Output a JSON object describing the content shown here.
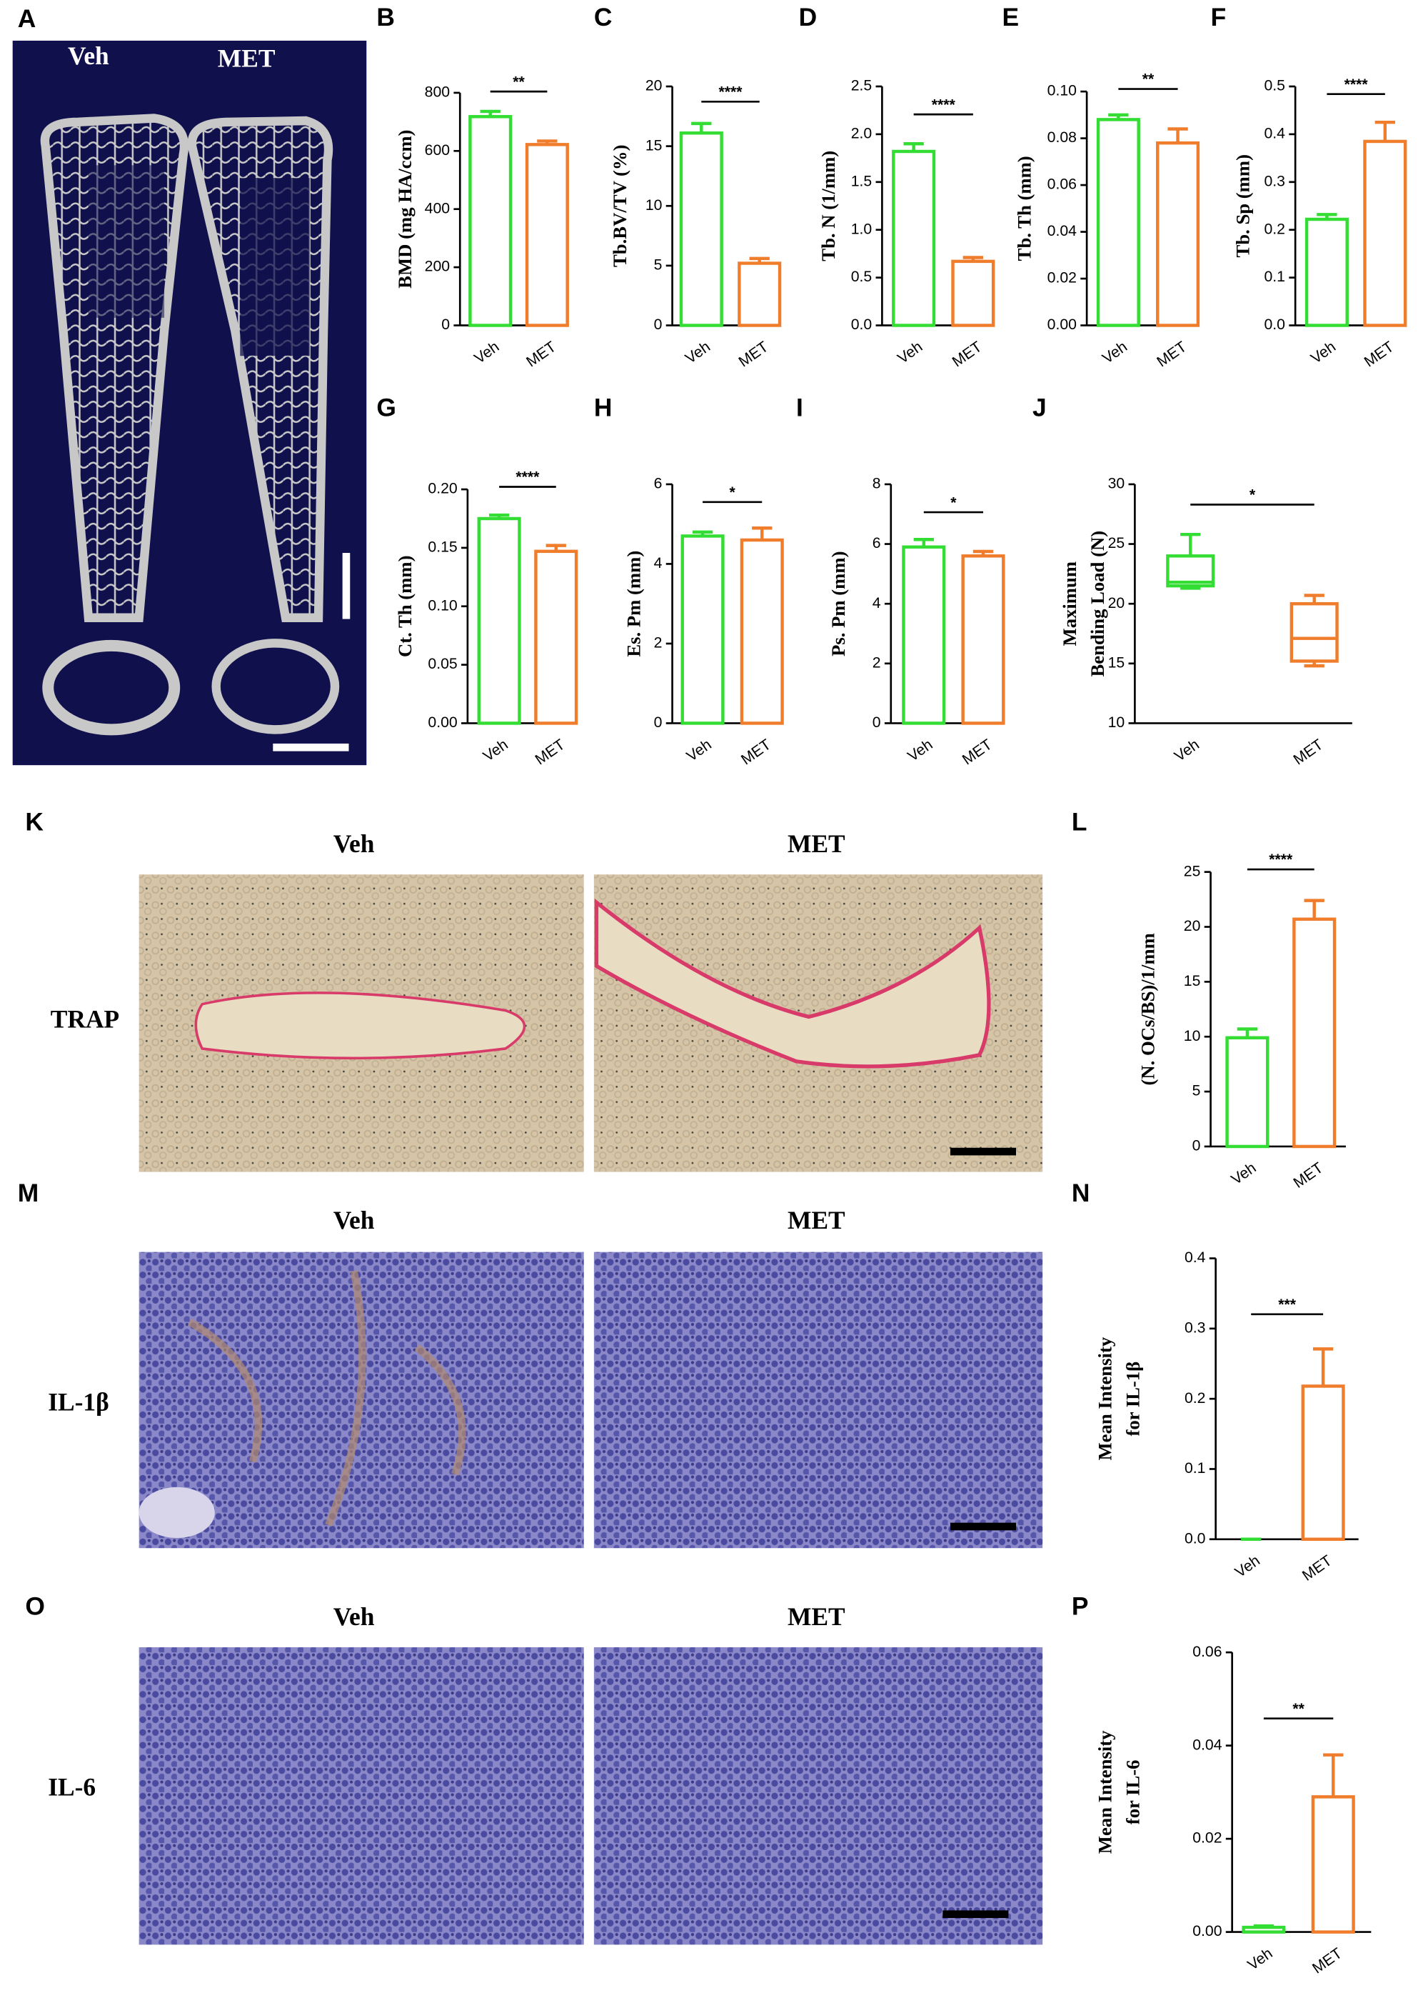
{
  "panels": [
    {
      "label": "A",
      "column_labels": [
        "Veh",
        "MET"
      ]
    },
    {
      "label": "K",
      "column_labels": [
        "Veh",
        "MET"
      ],
      "row_label": "TRAP"
    },
    {
      "label": "M",
      "column_labels": [
        "Veh",
        "MET"
      ],
      "row_label": "IL-1β"
    },
    {
      "label": "O",
      "column_labels": [
        "Veh",
        "MET"
      ],
      "row_label": "IL-6"
    }
  ],
  "chart_data": [
    {
      "type": "bar",
      "panel": "B",
      "ylabel": "BMD (mg HA/ccm)",
      "categories": [
        "Veh",
        "MET"
      ],
      "values": [
        718,
        622
      ],
      "errors": [
        18,
        12
      ],
      "colors": [
        "#33dd33",
        "#ef7d2c"
      ],
      "ylim": [
        0,
        800
      ],
      "yticks": [
        0,
        200,
        400,
        600,
        800
      ],
      "significance": "**"
    },
    {
      "type": "bar",
      "panel": "C",
      "ylabel": "Tb.BV/TV (%)",
      "categories": [
        "Veh",
        "MET"
      ],
      "values": [
        16.1,
        5.2
      ],
      "errors": [
        0.8,
        0.4
      ],
      "colors": [
        "#33dd33",
        "#ef7d2c"
      ],
      "ylim": [
        0,
        20
      ],
      "yticks": [
        0,
        5,
        10,
        15,
        20
      ],
      "significance": "****"
    },
    {
      "type": "bar",
      "panel": "D",
      "ylabel": "Tb. N (1/mm)",
      "categories": [
        "Veh",
        "MET"
      ],
      "values": [
        1.82,
        0.67
      ],
      "errors": [
        0.08,
        0.04
      ],
      "colors": [
        "#33dd33",
        "#ef7d2c"
      ],
      "ylim": [
        0,
        2.5
      ],
      "yticks": [
        {
          "value": 0,
          "label": "0.0"
        },
        0.5,
        {
          "value": 1,
          "label": "1.0"
        },
        1.5,
        {
          "value": 2,
          "label": "2.0"
        },
        2.5
      ],
      "significance": "****"
    },
    {
      "type": "bar",
      "panel": "E",
      "ylabel": "Tb. Th (mm)",
      "categories": [
        "Veh",
        "MET"
      ],
      "values": [
        0.088,
        0.078
      ],
      "errors": [
        0.002,
        0.006
      ],
      "colors": [
        "#33dd33",
        "#ef7d2c"
      ],
      "ylim": [
        0,
        0.1
      ],
      "yticks": [
        {
          "value": 0,
          "label": "0.00"
        },
        {
          "value": 0.02,
          "label": "0.02"
        },
        {
          "value": 0.04,
          "label": "0.04"
        },
        {
          "value": 0.06,
          "label": "0.06"
        },
        {
          "value": 0.08,
          "label": "0.08"
        },
        {
          "value": 0.1,
          "label": "0.10"
        }
      ],
      "significance": "**"
    },
    {
      "type": "bar",
      "panel": "F",
      "ylabel": "Tb. Sp (mm)",
      "categories": [
        "Veh",
        "MET"
      ],
      "values": [
        0.222,
        0.385
      ],
      "errors": [
        0.01,
        0.04
      ],
      "colors": [
        "#33dd33",
        "#ef7d2c"
      ],
      "ylim": [
        0,
        0.5
      ],
      "yticks": [
        {
          "value": 0,
          "label": "0.0"
        },
        0.1,
        0.2,
        0.3,
        0.4,
        0.5
      ],
      "significance": "****"
    },
    {
      "type": "bar",
      "panel": "G",
      "ylabel": "Ct. Th (mm)",
      "categories": [
        "Veh",
        "MET"
      ],
      "values": [
        0.175,
        0.147
      ],
      "errors": [
        0.003,
        0.005
      ],
      "colors": [
        "#33dd33",
        "#ef7d2c"
      ],
      "ylim": [
        0,
        0.2
      ],
      "yticks": [
        {
          "value": 0,
          "label": "0.00"
        },
        0.05,
        {
          "value": 0.1,
          "label": "0.10"
        },
        0.15,
        {
          "value": 0.2,
          "label": "0.20"
        }
      ],
      "significance": "****"
    },
    {
      "type": "bar",
      "panel": "H",
      "ylabel": "Es. Pm (mm)",
      "categories": [
        "Veh",
        "MET"
      ],
      "values": [
        4.7,
        4.6
      ],
      "errors": [
        0.1,
        0.3
      ],
      "colors": [
        "#33dd33",
        "#ef7d2c"
      ],
      "ylim": [
        0,
        6
      ],
      "yticks": [
        0,
        2,
        4,
        6
      ],
      "significance": "*"
    },
    {
      "type": "bar",
      "panel": "I",
      "ylabel": "Ps. Pm (mm)",
      "categories": [
        "Veh",
        "MET"
      ],
      "values": [
        5.9,
        5.6
      ],
      "errors": [
        0.25,
        0.15
      ],
      "colors": [
        "#33dd33",
        "#ef7d2c"
      ],
      "ylim": [
        0,
        8
      ],
      "yticks": [
        0,
        2,
        4,
        6,
        8
      ],
      "significance": "*"
    },
    {
      "type": "box",
      "panel": "J",
      "ylabel": [
        "Maximum",
        "Bending Load (N)"
      ],
      "categories": [
        "Veh",
        "MET"
      ],
      "min": [
        21.3,
        14.8
      ],
      "q1": [
        21.5,
        15.2
      ],
      "median": [
        21.8,
        17.1
      ],
      "q3": [
        24,
        20
      ],
      "max": [
        25.8,
        20.7
      ],
      "colors": [
        "#33dd33",
        "#ef7d2c"
      ],
      "ylim": [
        10,
        30
      ],
      "yticks": [
        10,
        15,
        20,
        25,
        30
      ],
      "significance": "*"
    },
    {
      "type": "bar",
      "panel": "L",
      "ylabel": "(N. OCs/BS)/1/mm",
      "categories": [
        "Veh",
        "MET"
      ],
      "values": [
        9.9,
        20.7
      ],
      "errors": [
        0.8,
        1.7
      ],
      "colors": [
        "#33dd33",
        "#ef7d2c"
      ],
      "ylim": [
        0,
        25
      ],
      "yticks": [
        0,
        5,
        10,
        15,
        20,
        25
      ],
      "significance": "****"
    },
    {
      "type": "bar",
      "panel": "N",
      "ylabel": [
        "Mean Intensity",
        "for IL-1β"
      ],
      "categories": [
        "Veh",
        "MET"
      ],
      "values": [
        0,
        0.218
      ],
      "errors": [
        0,
        0.053
      ],
      "colors": [
        "#33dd33",
        "#ef7d2c"
      ],
      "ylim": [
        0,
        0.4
      ],
      "yticks": [
        {
          "value": 0,
          "label": "0.0"
        },
        0.1,
        0.2,
        0.3,
        0.4
      ],
      "significance": "***"
    },
    {
      "type": "bar",
      "panel": "P",
      "ylabel": [
        "Mean Intensity",
        "for IL-6"
      ],
      "categories": [
        "Veh",
        "MET"
      ],
      "values": [
        0.001,
        0.029
      ],
      "errors": [
        0.0003,
        0.009
      ],
      "colors": [
        "#33dd33",
        "#ef7d2c"
      ],
      "ylim": [
        0,
        0.06
      ],
      "yticks": [
        {
          "value": 0,
          "label": "0.00"
        },
        0.02,
        0.04,
        0.06
      ],
      "significance": "**"
    }
  ]
}
